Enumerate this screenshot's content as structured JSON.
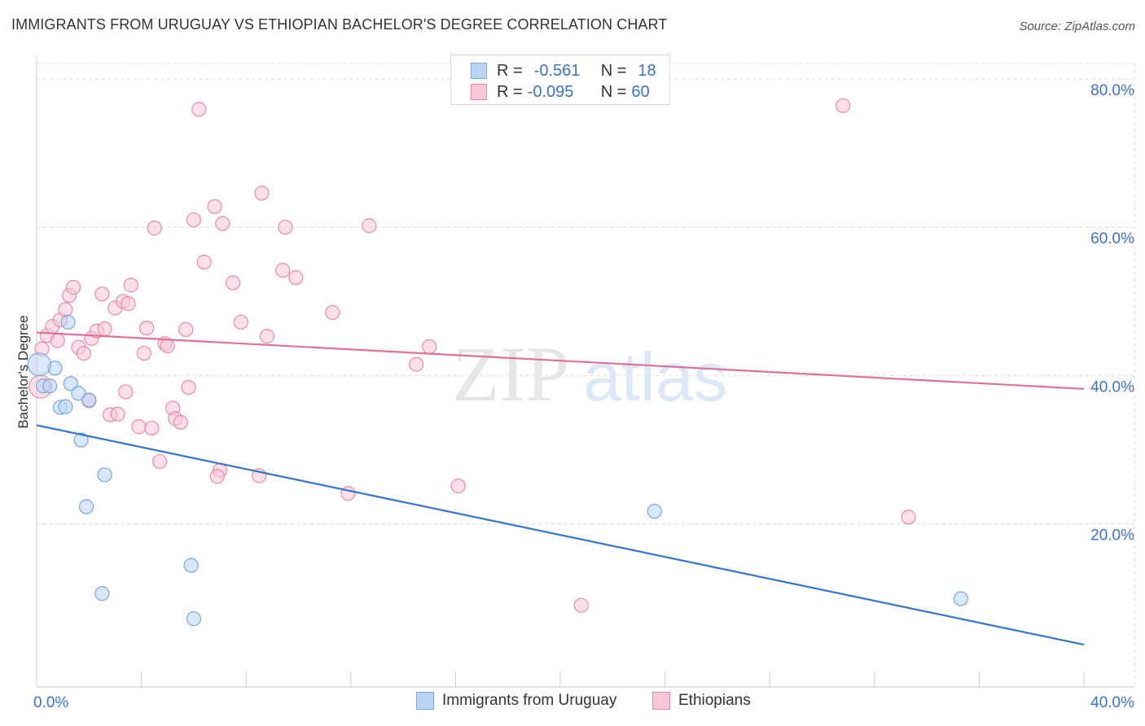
{
  "title": "IMMIGRANTS FROM URUGUAY VS ETHIOPIAN BACHELOR'S DEGREE CORRELATION CHART",
  "source": "Source: ZipAtlas.com",
  "watermark": {
    "zip": "ZIP",
    "atlas": "atlas"
  },
  "colors": {
    "blue_fill": "#b8d3f5",
    "blue_stroke": "#7aa6e0",
    "blue_line": "#3374d0",
    "pink_fill": "#f8c7d6",
    "pink_stroke": "#e88aaa",
    "pink_line": "#e0709a",
    "tick_label": "#3a72c8",
    "grid": "#dcdcdc"
  },
  "legend": {
    "series1": {
      "r_label": "R =",
      "r_value": "-0.561",
      "n_label": "N =",
      "n_value": "18"
    },
    "series2": {
      "r_label": "R =",
      "r_value": "-0.095",
      "n_label": "N =",
      "n_value": "60"
    }
  },
  "chart_data": {
    "type": "scatter",
    "title": "IMMIGRANTS FROM URUGUAY VS ETHIOPIAN BACHELOR'S DEGREE CORRELATION CHART",
    "xlabel": "",
    "ylabel": "Bachelor's Degree",
    "xlim": [
      0,
      40
    ],
    "ylim": [
      0,
      80
    ],
    "x_tick_labels": [
      {
        "value": 0,
        "label": "0.0%"
      },
      {
        "value": 40,
        "label": "40.0%"
      }
    ],
    "y_tick_labels": [
      {
        "value": 80,
        "label": "80.0%"
      },
      {
        "value": 60,
        "label": "60.0%"
      },
      {
        "value": 40,
        "label": "40.0%"
      },
      {
        "value": 20,
        "label": "20.0%"
      }
    ],
    "grid": true,
    "series": [
      {
        "name": "Immigrants from Uruguay",
        "color": "blue",
        "trend": {
          "x": [
            0,
            40
          ],
          "y": [
            33.3,
            3.7
          ]
        },
        "points": [
          {
            "x": 0.25,
            "y": 38.6
          },
          {
            "x": 0.5,
            "y": 38.6
          },
          {
            "x": 0.7,
            "y": 41.0
          },
          {
            "x": 1.2,
            "y": 47.2
          },
          {
            "x": 1.3,
            "y": 38.9
          },
          {
            "x": 1.6,
            "y": 37.6
          },
          {
            "x": 0.9,
            "y": 35.7
          },
          {
            "x": 1.1,
            "y": 35.8
          },
          {
            "x": 2.0,
            "y": 36.7
          },
          {
            "x": 1.7,
            "y": 31.3
          },
          {
            "x": 2.6,
            "y": 26.6
          },
          {
            "x": 1.9,
            "y": 22.3
          },
          {
            "x": 5.9,
            "y": 14.4
          },
          {
            "x": 2.5,
            "y": 10.6
          },
          {
            "x": 6.0,
            "y": 7.2
          },
          {
            "x": 23.6,
            "y": 21.7
          },
          {
            "x": 35.3,
            "y": 9.9
          },
          {
            "x": 0.1,
            "y": 41.5,
            "r": 14
          }
        ]
      },
      {
        "name": "Ethiopians",
        "color": "pink",
        "trend": {
          "x": [
            0,
            40
          ],
          "y": [
            45.8,
            38.2
          ]
        },
        "points": [
          {
            "x": 0.2,
            "y": 43.6
          },
          {
            "x": 0.4,
            "y": 45.4
          },
          {
            "x": 0.6,
            "y": 46.6
          },
          {
            "x": 0.8,
            "y": 44.7
          },
          {
            "x": 0.9,
            "y": 47.5
          },
          {
            "x": 1.1,
            "y": 48.9
          },
          {
            "x": 1.25,
            "y": 50.8
          },
          {
            "x": 1.4,
            "y": 51.9
          },
          {
            "x": 1.6,
            "y": 43.8
          },
          {
            "x": 1.8,
            "y": 43.0
          },
          {
            "x": 2.1,
            "y": 45.0
          },
          {
            "x": 2.3,
            "y": 46.0
          },
          {
            "x": 2.5,
            "y": 51.0
          },
          {
            "x": 2.6,
            "y": 46.3
          },
          {
            "x": 2.0,
            "y": 36.6
          },
          {
            "x": 2.8,
            "y": 34.7
          },
          {
            "x": 3.1,
            "y": 34.8
          },
          {
            "x": 3.0,
            "y": 49.1
          },
          {
            "x": 3.3,
            "y": 50.0
          },
          {
            "x": 3.5,
            "y": 49.7
          },
          {
            "x": 3.6,
            "y": 52.2
          },
          {
            "x": 3.4,
            "y": 37.8
          },
          {
            "x": 3.9,
            "y": 33.1
          },
          {
            "x": 4.2,
            "y": 46.4
          },
          {
            "x": 4.1,
            "y": 43.0
          },
          {
            "x": 4.4,
            "y": 32.9
          },
          {
            "x": 4.7,
            "y": 28.4
          },
          {
            "x": 4.9,
            "y": 44.3
          },
          {
            "x": 5.0,
            "y": 44.0
          },
          {
            "x": 5.2,
            "y": 35.6
          },
          {
            "x": 5.3,
            "y": 34.2
          },
          {
            "x": 5.5,
            "y": 33.7
          },
          {
            "x": 5.7,
            "y": 46.2
          },
          {
            "x": 5.8,
            "y": 38.4
          },
          {
            "x": 4.5,
            "y": 59.9
          },
          {
            "x": 6.0,
            "y": 61.0
          },
          {
            "x": 6.2,
            "y": 75.9
          },
          {
            "x": 6.4,
            "y": 55.3
          },
          {
            "x": 6.8,
            "y": 62.8
          },
          {
            "x": 7.1,
            "y": 60.5
          },
          {
            "x": 7.5,
            "y": 52.5
          },
          {
            "x": 7.8,
            "y": 47.2
          },
          {
            "x": 8.6,
            "y": 64.6
          },
          {
            "x": 8.8,
            "y": 45.3
          },
          {
            "x": 9.4,
            "y": 54.2
          },
          {
            "x": 9.5,
            "y": 60.0
          },
          {
            "x": 9.9,
            "y": 53.2
          },
          {
            "x": 11.3,
            "y": 48.5
          },
          {
            "x": 12.7,
            "y": 60.2
          },
          {
            "x": 14.5,
            "y": 41.5
          },
          {
            "x": 15.0,
            "y": 43.9
          },
          {
            "x": 16.1,
            "y": 25.1
          },
          {
            "x": 11.9,
            "y": 24.1
          },
          {
            "x": 8.5,
            "y": 26.5
          },
          {
            "x": 7.0,
            "y": 27.2
          },
          {
            "x": 6.9,
            "y": 26.4
          },
          {
            "x": 20.8,
            "y": 9.0
          },
          {
            "x": 30.8,
            "y": 76.4
          },
          {
            "x": 33.3,
            "y": 20.9
          },
          {
            "x": 0.15,
            "y": 38.5,
            "r": 14
          }
        ]
      }
    ]
  },
  "bottom_legend": {
    "item1": "Immigrants from Uruguay",
    "item2": "Ethiopians"
  }
}
